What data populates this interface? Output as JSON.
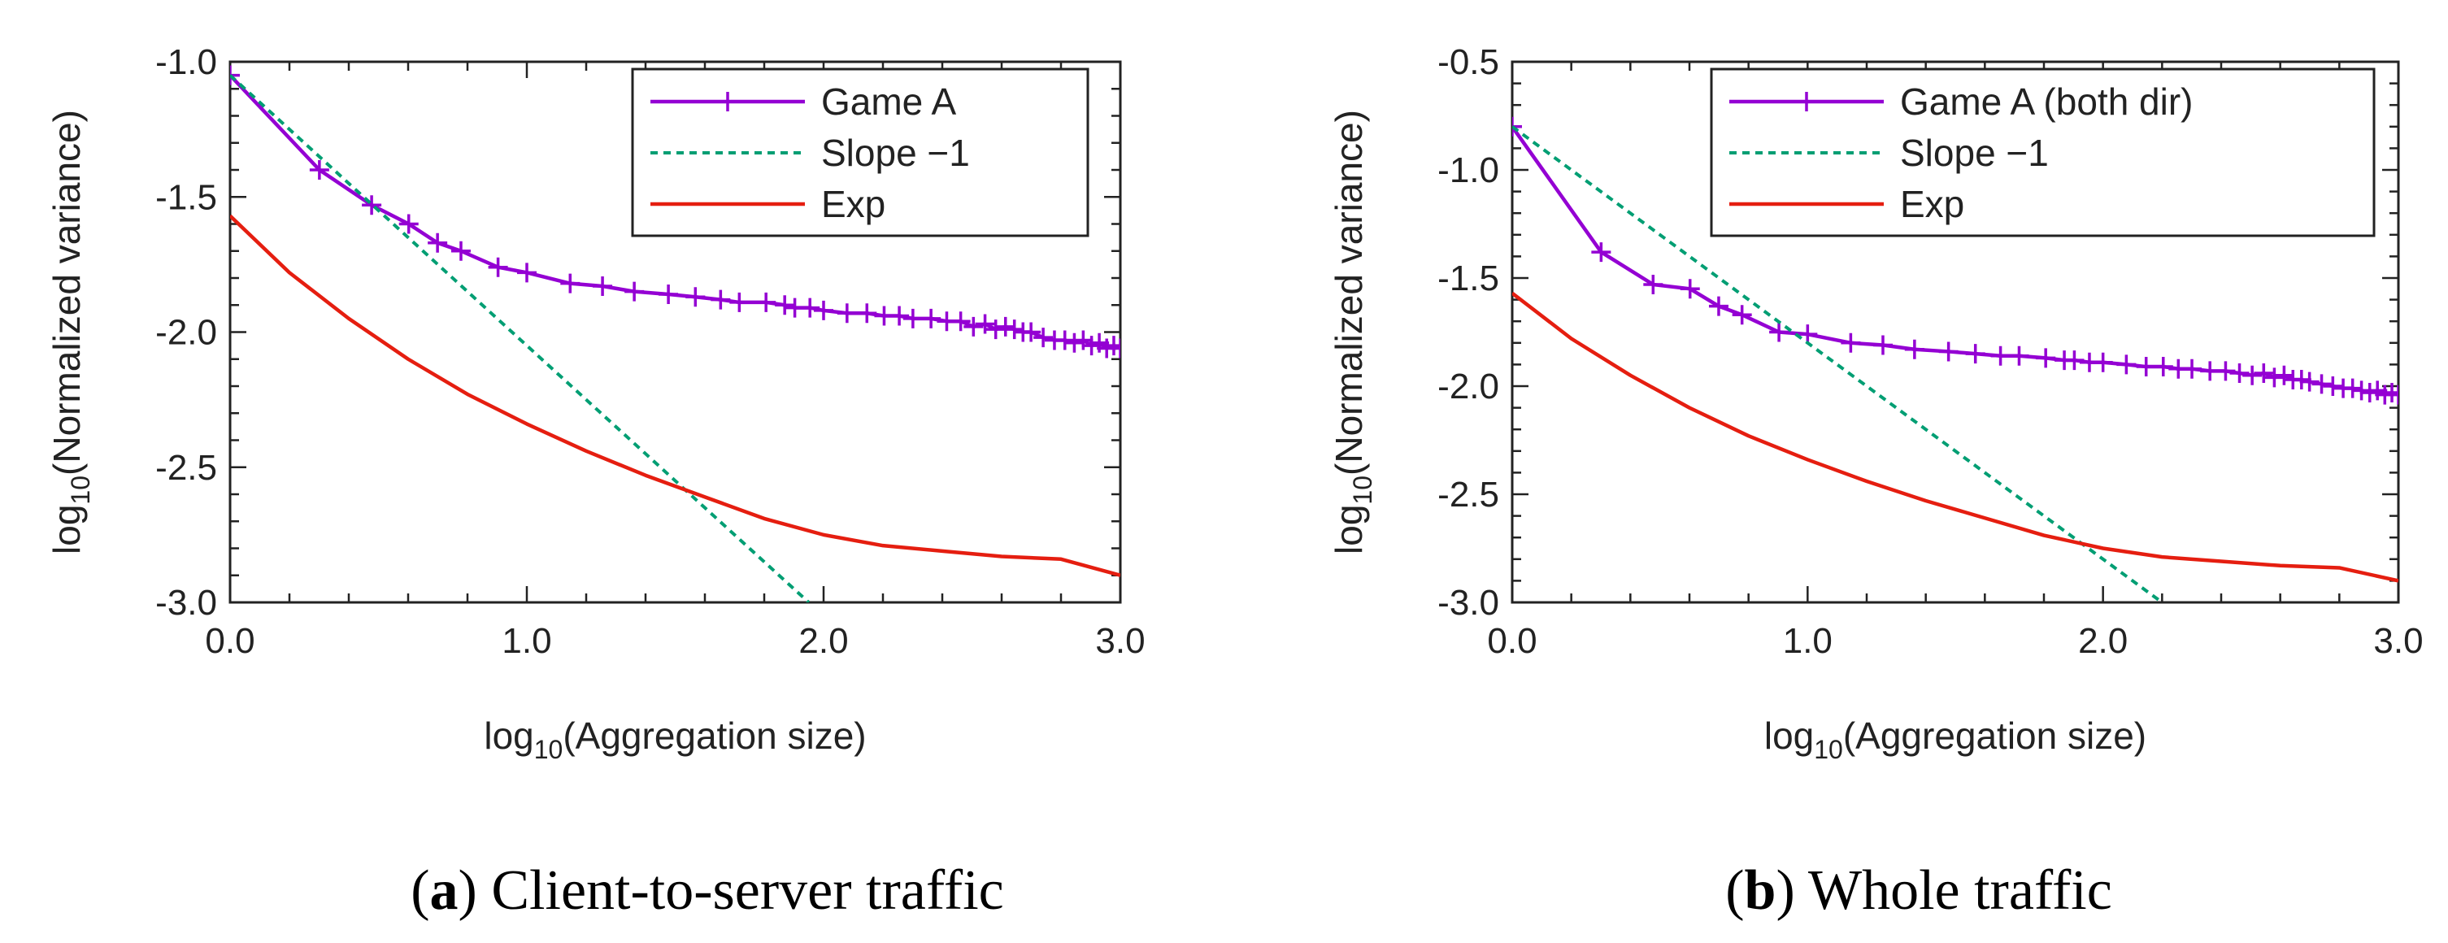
{
  "chart_data": [
    {
      "type": "line",
      "panel_label": "a",
      "caption": "Client-to-server traffic",
      "xlabel": {
        "prefix": "log",
        "sub": "10",
        "suffix": "(Aggregation size)"
      },
      "ylabel": {
        "prefix": "log",
        "sub": "10",
        "suffix": "(Normalized variance)"
      },
      "xlim": [
        0,
        3
      ],
      "ylim": [
        -3,
        -1
      ],
      "x_ticks": [
        0,
        1,
        2,
        3
      ],
      "x_tick_labels": [
        "0.0",
        "1.0",
        "2.0",
        "3.0"
      ],
      "y_ticks": [
        -3,
        -2.5,
        -2,
        -1.5,
        -1
      ],
      "y_tick_labels": [
        "-3.0",
        "-2.5",
        "-2.0",
        "-1.5",
        "-1.0"
      ],
      "legend_position": "top-right",
      "series": [
        {
          "name": "Game A",
          "color": "#9400D3",
          "style": "line-markers",
          "x": [
            0,
            0.301,
            0.477,
            0.602,
            0.699,
            0.778,
            0.903,
            1.0,
            1.146,
            1.255,
            1.362,
            1.477,
            1.568,
            1.653,
            1.716,
            1.806,
            1.869,
            1.903,
            1.954,
            2.0,
            2.079,
            2.146,
            2.204,
            2.255,
            2.301,
            2.362,
            2.415,
            2.462,
            2.505,
            2.544,
            2.58,
            2.613,
            2.643,
            2.672,
            2.699,
            2.74,
            2.778,
            2.813,
            2.845,
            2.875,
            2.903,
            2.929,
            2.954,
            2.978,
            3.0
          ],
          "y": [
            -1.05,
            -1.4,
            -1.53,
            -1.6,
            -1.67,
            -1.7,
            -1.76,
            -1.78,
            -1.82,
            -1.83,
            -1.85,
            -1.86,
            -1.87,
            -1.88,
            -1.89,
            -1.89,
            -1.9,
            -1.91,
            -1.91,
            -1.92,
            -1.93,
            -1.93,
            -1.94,
            -1.94,
            -1.95,
            -1.95,
            -1.96,
            -1.96,
            -1.98,
            -1.97,
            -1.99,
            -1.98,
            -1.99,
            -2.0,
            -2.0,
            -2.02,
            -2.03,
            -2.03,
            -2.04,
            -2.03,
            -2.05,
            -2.04,
            -2.06,
            -2.05,
            -2.06
          ]
        },
        {
          "name": "Slope −1",
          "color": "#009E73",
          "style": "dashed",
          "x": [
            0,
            1.95
          ],
          "y": [
            -1.05,
            -3.0
          ]
        },
        {
          "name": "Exp",
          "color": "#E51E10",
          "style": "line",
          "x": [
            0,
            0.2,
            0.4,
            0.6,
            0.8,
            1.0,
            1.2,
            1.4,
            1.6,
            1.8,
            2.0,
            2.2,
            2.4,
            2.6,
            2.8,
            3.0
          ],
          "y": [
            -1.57,
            -1.78,
            -1.95,
            -2.1,
            -2.23,
            -2.34,
            -2.44,
            -2.53,
            -2.61,
            -2.69,
            -2.75,
            -2.79,
            -2.81,
            -2.83,
            -2.84,
            -2.9
          ]
        }
      ]
    },
    {
      "type": "line",
      "panel_label": "b",
      "caption": "Whole traffic",
      "xlabel": {
        "prefix": "log",
        "sub": "10",
        "suffix": "(Aggregation size)"
      },
      "ylabel": {
        "prefix": "log",
        "sub": "10",
        "suffix": "(Normalized variance)"
      },
      "xlim": [
        0,
        3
      ],
      "ylim": [
        -3,
        -0.5
      ],
      "x_ticks": [
        0,
        1,
        2,
        3
      ],
      "x_tick_labels": [
        "0.0",
        "1.0",
        "2.0",
        "3.0"
      ],
      "y_ticks": [
        -3,
        -2.5,
        -2,
        -1.5,
        -1,
        -0.5
      ],
      "y_tick_labels": [
        "-3.0",
        "-2.5",
        "-2.0",
        "-1.5",
        "-1.0",
        "-0.5"
      ],
      "legend_position": "top-right",
      "series": [
        {
          "name": "Game A (both dir)",
          "color": "#9400D3",
          "style": "line-markers",
          "x": [
            0,
            0.301,
            0.477,
            0.602,
            0.699,
            0.778,
            0.903,
            1.0,
            1.146,
            1.255,
            1.362,
            1.477,
            1.568,
            1.653,
            1.716,
            1.806,
            1.869,
            1.903,
            1.954,
            2.0,
            2.079,
            2.146,
            2.204,
            2.255,
            2.301,
            2.362,
            2.415,
            2.462,
            2.505,
            2.544,
            2.58,
            2.613,
            2.643,
            2.672,
            2.699,
            2.74,
            2.778,
            2.813,
            2.845,
            2.875,
            2.903,
            2.929,
            2.954,
            2.978,
            3.0
          ],
          "y": [
            -0.8,
            -1.38,
            -1.53,
            -1.55,
            -1.63,
            -1.67,
            -1.75,
            -1.76,
            -1.8,
            -1.81,
            -1.83,
            -1.84,
            -1.85,
            -1.86,
            -1.86,
            -1.87,
            -1.88,
            -1.88,
            -1.89,
            -1.89,
            -1.9,
            -1.91,
            -1.91,
            -1.92,
            -1.92,
            -1.93,
            -1.93,
            -1.94,
            -1.95,
            -1.94,
            -1.96,
            -1.95,
            -1.97,
            -1.97,
            -1.98,
            -1.99,
            -2.0,
            -2.01,
            -2.01,
            -2.02,
            -2.03,
            -2.02,
            -2.04,
            -2.03,
            -2.04
          ]
        },
        {
          "name": "Slope −1",
          "color": "#009E73",
          "style": "dashed",
          "x": [
            0,
            2.2
          ],
          "y": [
            -0.8,
            -3.0
          ]
        },
        {
          "name": "Exp",
          "color": "#E51E10",
          "style": "line",
          "x": [
            0,
            0.2,
            0.4,
            0.6,
            0.8,
            1.0,
            1.2,
            1.4,
            1.6,
            1.8,
            2.0,
            2.2,
            2.4,
            2.6,
            2.8,
            3.0
          ],
          "y": [
            -1.57,
            -1.78,
            -1.95,
            -2.1,
            -2.23,
            -2.34,
            -2.44,
            -2.53,
            -2.61,
            -2.69,
            -2.75,
            -2.79,
            -2.81,
            -2.83,
            -2.84,
            -2.9
          ]
        }
      ]
    }
  ]
}
